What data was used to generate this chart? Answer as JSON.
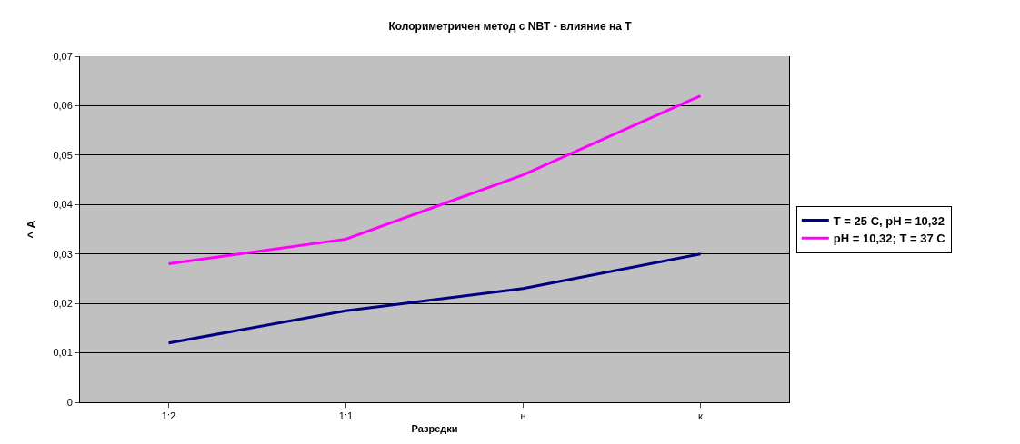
{
  "chart_data": {
    "type": "line",
    "title": "Колориметричен метод с NBT - влияние на T",
    "xlabel": "Разредки",
    "ylabel": "^ A",
    "categories": [
      "1:2",
      "1:1",
      "н",
      "к"
    ],
    "series": [
      {
        "name": "T = 25 C, pH = 10,32",
        "color": "#000080",
        "values": [
          0.012,
          0.0185,
          0.023,
          0.03
        ]
      },
      {
        "name": "pH = 10,32; T = 37 C",
        "color": "#ff00ff",
        "values": [
          0.028,
          0.033,
          0.046,
          0.062
        ]
      }
    ],
    "ylim": [
      0,
      0.07
    ],
    "yticks": [
      0,
      {
        "value": 0.01,
        "label": "0,01"
      },
      {
        "value": 0.02,
        "label": "0,02"
      },
      {
        "value": 0.03,
        "label": "0,03"
      },
      {
        "value": 0.04,
        "label": "0,04"
      },
      {
        "value": 0.05,
        "label": "0,05"
      },
      {
        "value": 0.06,
        "label": "0,06"
      },
      {
        "value": 0.07,
        "label": "0,07"
      }
    ],
    "grid": "y",
    "legend": "right",
    "marker": "none",
    "line_style": "solid"
  }
}
